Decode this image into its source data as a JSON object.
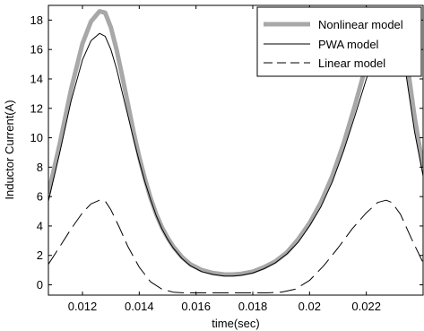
{
  "chart_data": {
    "type": "line",
    "xlabel": "time(sec)",
    "ylabel": "Inductor Current(A)",
    "xlim": [
      0.0108,
      0.024
    ],
    "ylim": [
      -0.7,
      19
    ],
    "x_ticks": [
      0.012,
      0.014,
      0.016,
      0.018,
      0.02,
      0.022
    ],
    "x_tick_labels": [
      "0.012",
      "0.014",
      "0.016",
      "0.018",
      "0.02",
      "0.022"
    ],
    "y_ticks": [
      0,
      2,
      4,
      6,
      8,
      10,
      12,
      14,
      16,
      18
    ],
    "y_tick_labels": [
      "0",
      "2",
      "4",
      "6",
      "8",
      "10",
      "12",
      "14",
      "16",
      "18"
    ],
    "grid": false,
    "legend_position": "top-right",
    "series": [
      {
        "name": "Nonlinear model",
        "color": "#a8a8a8",
        "style": "solid-thick",
        "x": [
          0.0108,
          0.0112,
          0.0116,
          0.012,
          0.0123,
          0.0126,
          0.0128,
          0.013,
          0.0132,
          0.0134,
          0.0136,
          0.0138,
          0.014,
          0.0142,
          0.0144,
          0.0146,
          0.0148,
          0.015,
          0.0152,
          0.0155,
          0.0158,
          0.0162,
          0.0166,
          0.017,
          0.0173,
          0.0176,
          0.018,
          0.0184,
          0.0188,
          0.0192,
          0.0196,
          0.02,
          0.0204,
          0.0208,
          0.0212,
          0.0216,
          0.022,
          0.0224,
          0.0227,
          0.0229,
          0.0231,
          0.0234,
          0.0237,
          0.024
        ],
        "y": [
          6.2,
          9.6,
          13.3,
          16.4,
          17.9,
          18.6,
          18.5,
          17.5,
          16.0,
          14.2,
          12.3,
          10.4,
          8.7,
          7.2,
          5.9,
          4.8,
          3.9,
          3.2,
          2.6,
          1.9,
          1.4,
          1.0,
          0.8,
          0.7,
          0.7,
          0.75,
          0.9,
          1.2,
          1.6,
          2.2,
          3.1,
          4.2,
          5.6,
          7.4,
          9.6,
          12.2,
          15.0,
          17.5,
          18.5,
          18.7,
          18.2,
          15.6,
          11.4,
          8.0
        ]
      },
      {
        "name": "PWA model",
        "color": "#000000",
        "style": "solid-thin",
        "x": [
          0.0108,
          0.0112,
          0.0116,
          0.012,
          0.0123,
          0.0126,
          0.0128,
          0.013,
          0.0132,
          0.0134,
          0.0136,
          0.0138,
          0.014,
          0.0142,
          0.0144,
          0.0146,
          0.0148,
          0.015,
          0.0152,
          0.0155,
          0.0158,
          0.0162,
          0.0166,
          0.017,
          0.0173,
          0.0176,
          0.018,
          0.0184,
          0.0188,
          0.0192,
          0.0196,
          0.02,
          0.0204,
          0.0208,
          0.0212,
          0.0216,
          0.022,
          0.0224,
          0.0227,
          0.0229,
          0.0231,
          0.0234,
          0.0237,
          0.024
        ],
        "y": [
          5.7,
          9.0,
          12.5,
          15.3,
          16.6,
          17.1,
          16.9,
          16.0,
          14.7,
          13.1,
          11.5,
          9.9,
          8.4,
          7.0,
          5.8,
          4.7,
          3.8,
          3.1,
          2.5,
          1.8,
          1.3,
          0.9,
          0.7,
          0.6,
          0.6,
          0.65,
          0.8,
          1.1,
          1.5,
          2.1,
          2.9,
          4.0,
          5.3,
          7.0,
          9.1,
          11.5,
          14.0,
          16.2,
          17.0,
          17.1,
          16.6,
          14.3,
          10.4,
          7.4
        ]
      },
      {
        "name": "Linear model",
        "color": "#000000",
        "style": "dashed",
        "x": [
          0.0108,
          0.0112,
          0.0116,
          0.012,
          0.0123,
          0.0126,
          0.0128,
          0.013,
          0.0133,
          0.0136,
          0.014,
          0.0144,
          0.0148,
          0.0152,
          0.0156,
          0.016,
          0.0165,
          0.017,
          0.0175,
          0.018,
          0.0185,
          0.019,
          0.0195,
          0.02,
          0.0205,
          0.021,
          0.0215,
          0.022,
          0.0224,
          0.0227,
          0.0229,
          0.0232,
          0.0236,
          0.024
        ],
        "y": [
          1.4,
          2.6,
          3.8,
          4.9,
          5.5,
          5.75,
          5.7,
          5.1,
          3.9,
          2.6,
          1.2,
          0.2,
          -0.3,
          -0.5,
          -0.55,
          -0.55,
          -0.55,
          -0.55,
          -0.55,
          -0.55,
          -0.55,
          -0.5,
          -0.3,
          0.3,
          1.3,
          2.5,
          3.8,
          4.9,
          5.6,
          5.75,
          5.6,
          4.8,
          3.1,
          1.5
        ]
      }
    ]
  }
}
